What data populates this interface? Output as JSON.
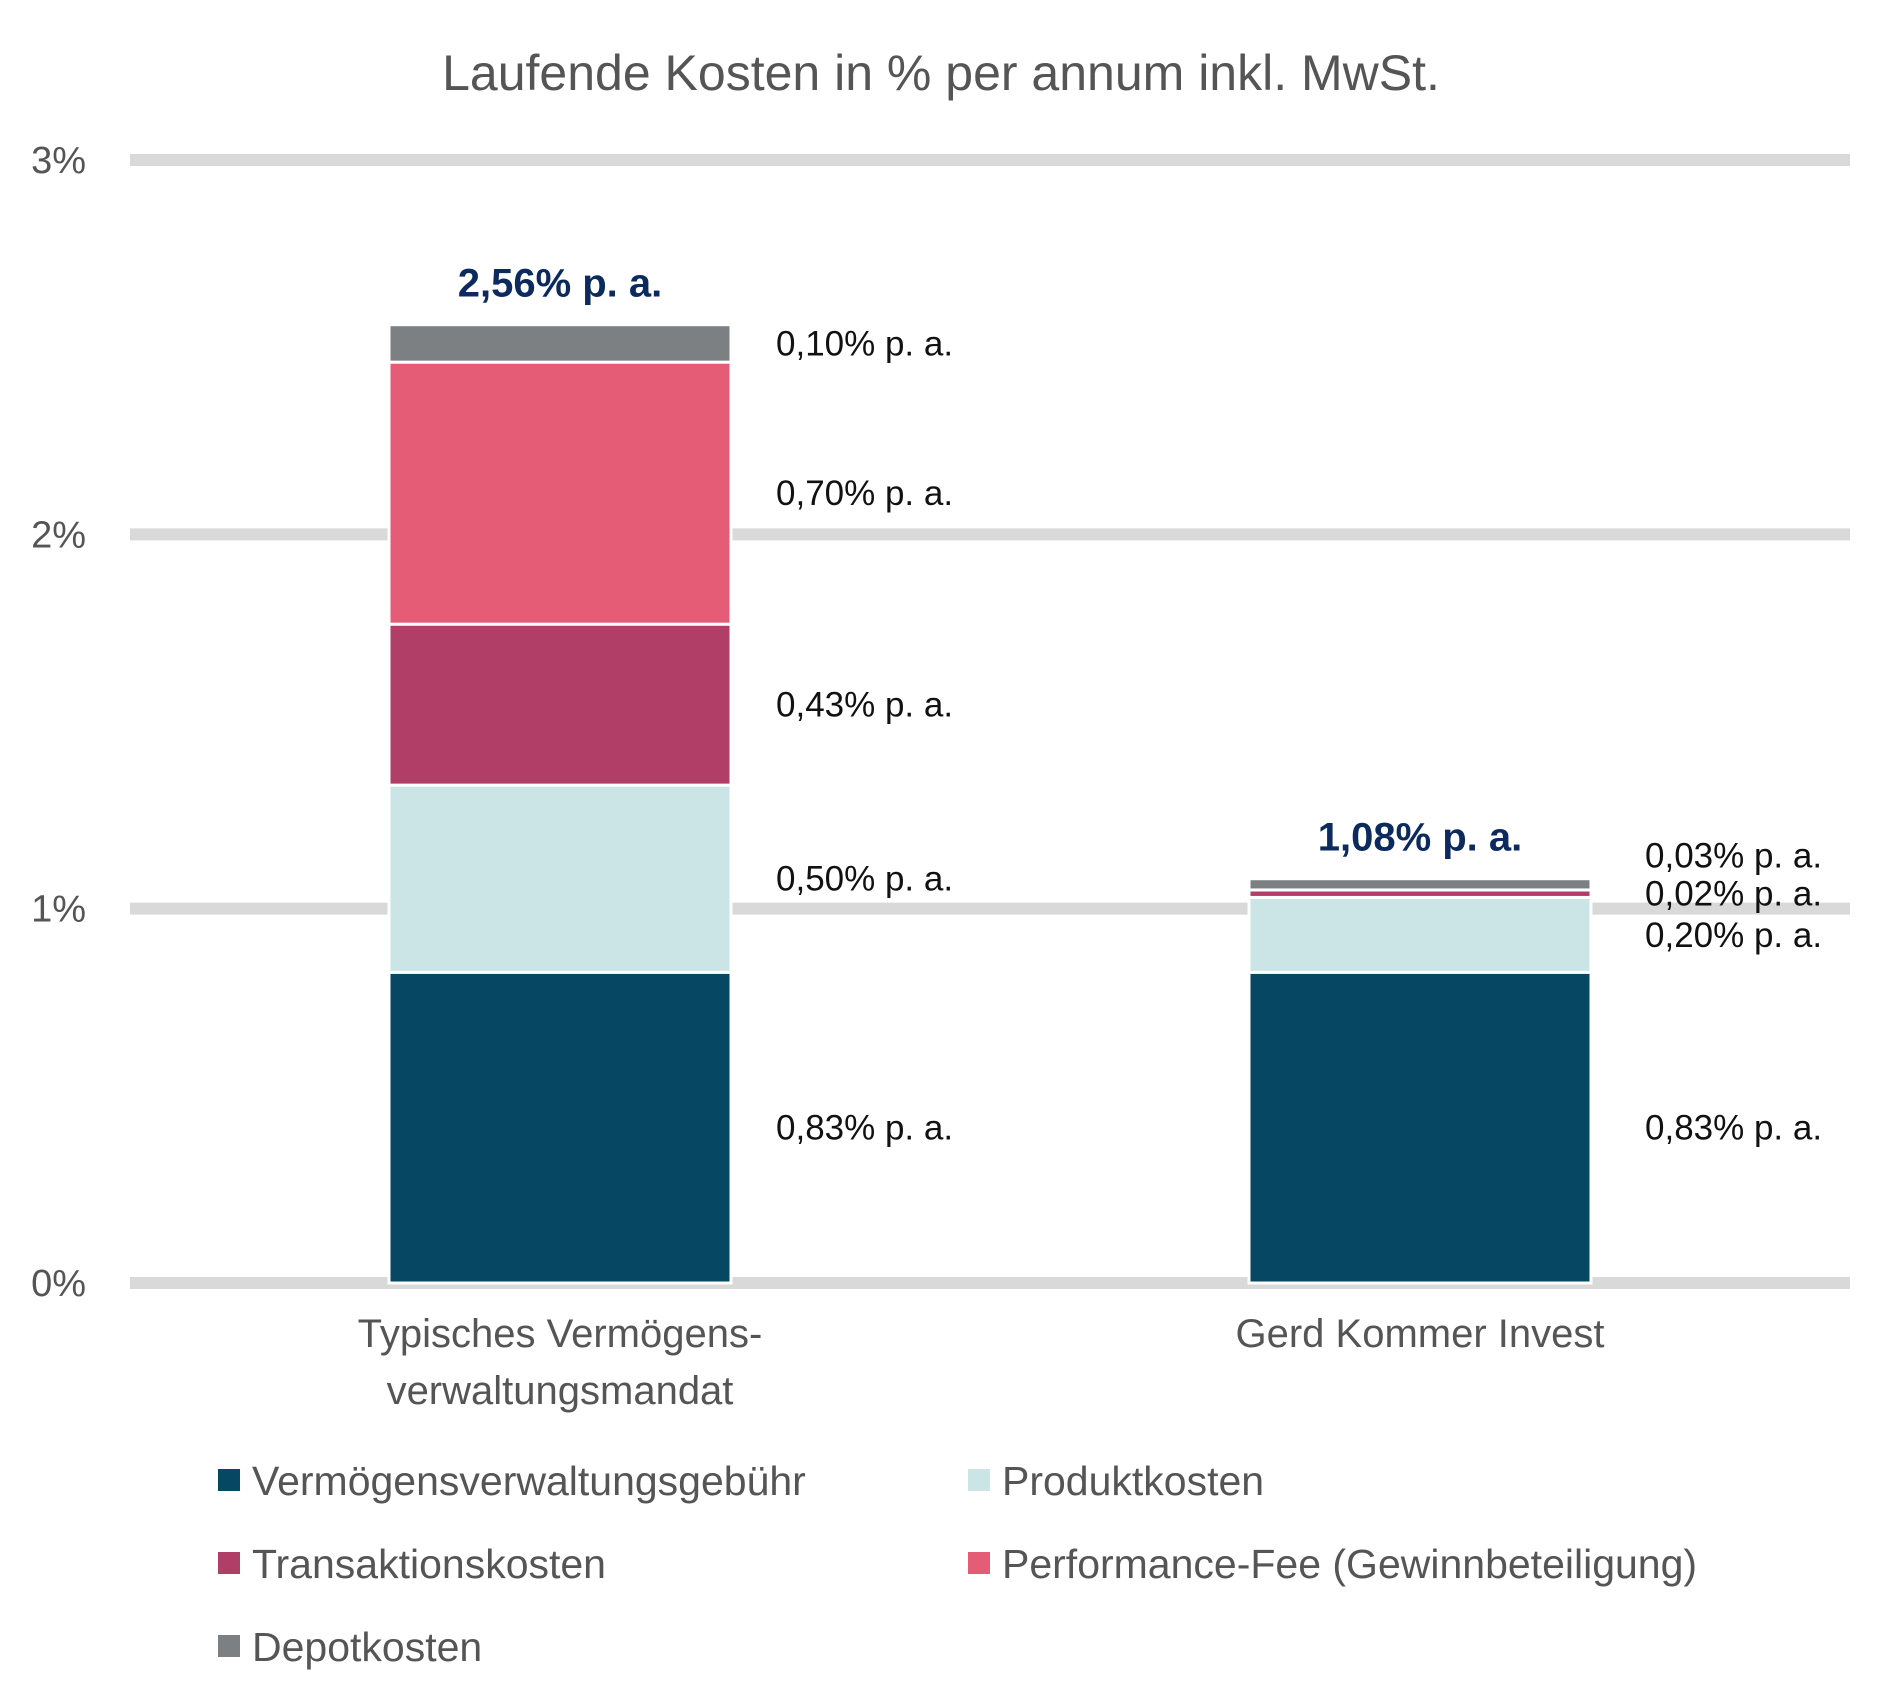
{
  "chart_data": {
    "type": "bar",
    "stacked": true,
    "title": "Laufende Kosten in % per annum inkl. MwSt.",
    "xlabel": "",
    "ylabel": "",
    "ylim": [
      0,
      3
    ],
    "yticks": [
      0,
      1,
      2,
      3
    ],
    "ytick_labels": [
      "0%",
      "1%",
      "2%",
      "3%"
    ],
    "grid": true,
    "legend_position": "bottom",
    "categories": [
      [
        "Typisches Vermögens-",
        "verwaltungsmandat"
      ],
      [
        "Gerd Kommer Invest"
      ]
    ],
    "totals": [
      2.56,
      1.08
    ],
    "total_labels": [
      "2,56% p. a.",
      "1,08% p. a."
    ],
    "total_label_color": "#0c2a5e",
    "series": [
      {
        "name": "Vermögensverwaltungsgebühr",
        "color": "#064863",
        "values": [
          0.83,
          0.83
        ],
        "labels": [
          "0,83% p. a.",
          "0,83% p. a."
        ]
      },
      {
        "name": "Produktkosten",
        "color": "#cbe4e6",
        "values": [
          0.5,
          0.2
        ],
        "labels": [
          "0,50% p. a.",
          "0,20% p. a."
        ]
      },
      {
        "name": "Transaktionskosten",
        "color": "#b03e67",
        "values": [
          0.43,
          0.02
        ],
        "labels": [
          "0,43% p. a.",
          "0,02% p. a."
        ]
      },
      {
        "name": "Performance-Fee (Gewinnbeteiligung)",
        "color": "#e55c77",
        "values": [
          0.7,
          0.0
        ],
        "labels": [
          "0,70% p. a.",
          ""
        ]
      },
      {
        "name": "Depotkosten",
        "color": "#7c8083",
        "values": [
          0.1,
          0.03
        ],
        "labels": [
          "0,10% p. a.",
          "0,03% p. a."
        ]
      }
    ],
    "colors": {
      "grid": "#d9d9d9",
      "text": "#555555",
      "segment_label": "#111111"
    }
  }
}
